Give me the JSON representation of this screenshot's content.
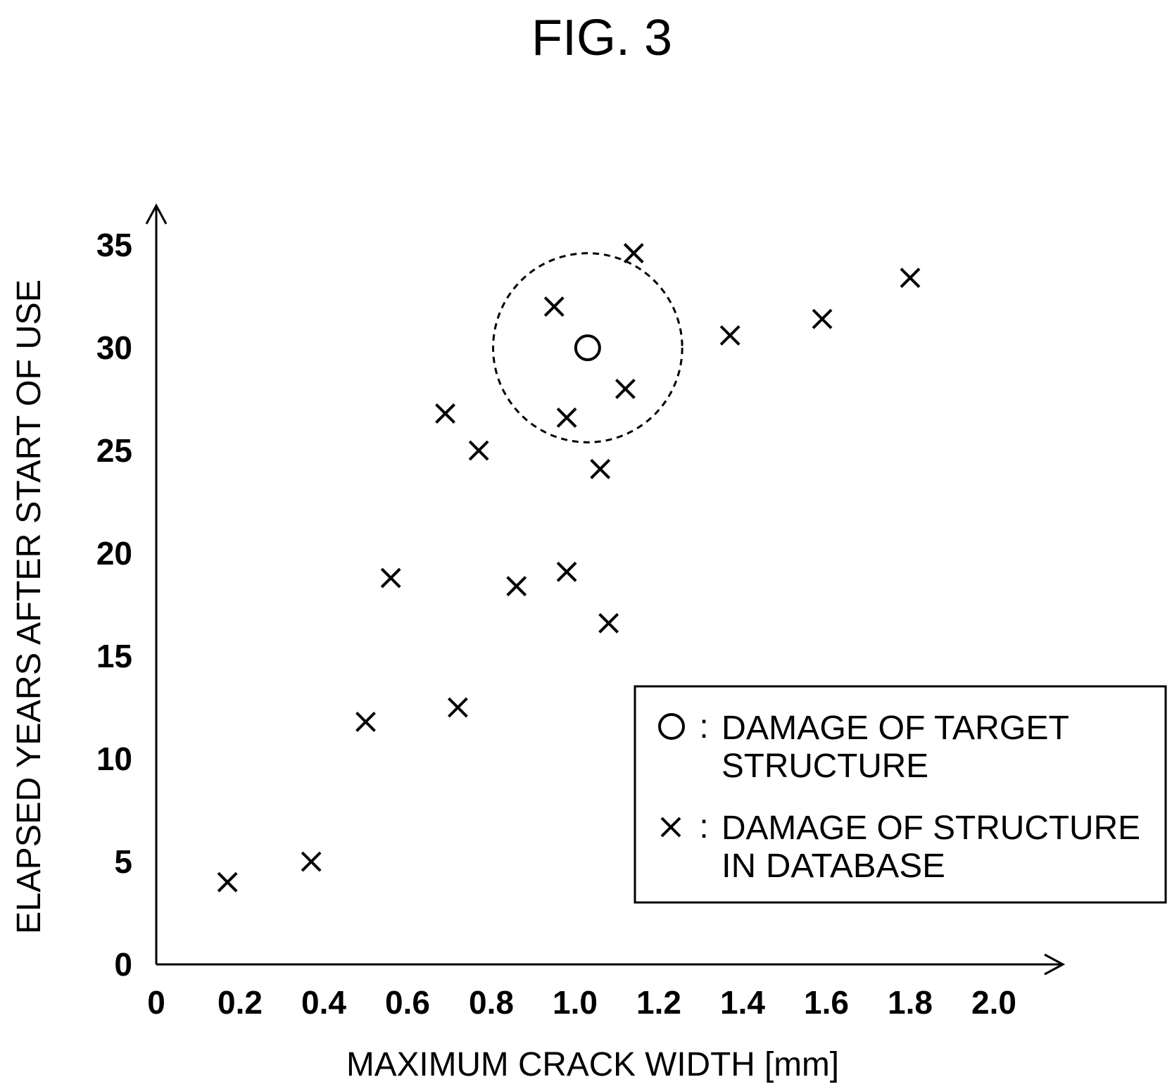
{
  "chart_data": {
    "type": "scatter",
    "title": "FIG. 3",
    "xlabel": "MAXIMUM CRACK WIDTH [mm]",
    "ylabel": "ELAPSED YEARS AFTER START OF USE",
    "xlim": [
      0,
      2.0
    ],
    "ylim": [
      0,
      35
    ],
    "x_ticks": [
      "0",
      "0.2",
      "0.4",
      "0.6",
      "0.8",
      "1.0",
      "1.2",
      "1.4",
      "1.6",
      "1.8",
      "2.0"
    ],
    "y_ticks": [
      "0",
      "5",
      "10",
      "15",
      "20",
      "25",
      "30",
      "35"
    ],
    "grid": false,
    "legend_position": "right",
    "series": [
      {
        "name": "DAMAGE OF TARGET STRUCTURE",
        "marker": "circle",
        "points": [
          {
            "x": 1.03,
            "y": 30.0
          }
        ]
      },
      {
        "name": "DAMAGE OF STRUCTURE IN DATABASE",
        "marker": "x",
        "points": [
          {
            "x": 0.17,
            "y": 4.0
          },
          {
            "x": 0.37,
            "y": 5.0
          },
          {
            "x": 0.5,
            "y": 11.8
          },
          {
            "x": 0.56,
            "y": 18.8
          },
          {
            "x": 0.69,
            "y": 26.8
          },
          {
            "x": 0.72,
            "y": 12.5
          },
          {
            "x": 0.77,
            "y": 25.0
          },
          {
            "x": 0.86,
            "y": 18.4
          },
          {
            "x": 0.95,
            "y": 32.0
          },
          {
            "x": 0.98,
            "y": 26.6
          },
          {
            "x": 0.98,
            "y": 19.1
          },
          {
            "x": 1.06,
            "y": 24.1
          },
          {
            "x": 1.08,
            "y": 16.6
          },
          {
            "x": 1.12,
            "y": 28.0
          },
          {
            "x": 1.14,
            "y": 34.6
          },
          {
            "x": 1.37,
            "y": 30.6
          },
          {
            "x": 1.59,
            "y": 31.4
          },
          {
            "x": 1.8,
            "y": 33.4
          }
        ]
      }
    ],
    "annotations": [
      {
        "type": "dashed-circle",
        "center": {
          "x": 1.03,
          "y": 30.0
        },
        "radius_years": 4.6
      }
    ]
  },
  "legend": {
    "separator": ":",
    "entries": [
      {
        "symbol": "circle",
        "line1": "DAMAGE OF TARGET",
        "line2": "STRUCTURE"
      },
      {
        "symbol": "x",
        "line1": "DAMAGE OF STRUCTURE",
        "line2": "IN DATABASE"
      }
    ]
  }
}
